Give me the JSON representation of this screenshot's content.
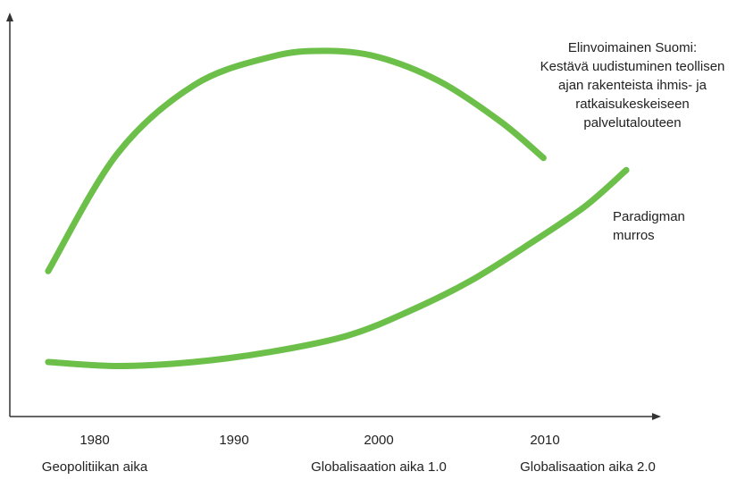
{
  "chart_data": {
    "type": "line",
    "xlim": [
      1976,
      2018
    ],
    "ylim": [
      0,
      100
    ],
    "x_ticks": [
      "1980",
      "1990",
      "2000",
      "2010"
    ],
    "era_labels": [
      "Geopolitiikan aika",
      "Globalisaation aika 1.0",
      "Globalisaation aika 2.0"
    ],
    "series": [
      {
        "color": "#6cc04a",
        "points": [
          [
            1978.5,
            36
          ],
          [
            1983,
            65
          ],
          [
            1988,
            82
          ],
          [
            1993,
            89
          ],
          [
            1996.5,
            90.5
          ],
          [
            2000,
            89
          ],
          [
            2004,
            83
          ],
          [
            2008,
            73
          ],
          [
            2010.8,
            64
          ]
        ]
      },
      {
        "color": "#6cc04a",
        "points": [
          [
            1978.5,
            13.5
          ],
          [
            1983,
            12.5
          ],
          [
            1988,
            13.5
          ],
          [
            1993,
            16
          ],
          [
            1998,
            20
          ],
          [
            2002,
            26
          ],
          [
            2006,
            33.5
          ],
          [
            2010,
            43
          ],
          [
            2013.5,
            52
          ],
          [
            2016.2,
            61
          ]
        ]
      }
    ],
    "annotations": [
      {
        "lines": [
          "Elinvoimainen Suomi:",
          "Kestävä uudistuminen teollisen",
          "ajan rakenteista ihmis- ja",
          "ratkaisukeskeiseen",
          "palvelutalouteen"
        ]
      },
      {
        "lines": [
          "Paradigman",
          "murros"
        ]
      }
    ]
  }
}
